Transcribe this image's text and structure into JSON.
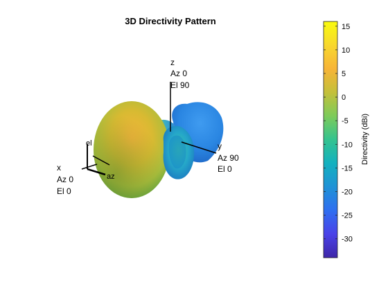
{
  "chart_data": {
    "type": "3d-radiation-pattern",
    "title": "3D Directivity Pattern",
    "colorbar": {
      "label": "Directivity (dBi)",
      "ticks": [
        15,
        10,
        5,
        0,
        -5,
        -10,
        -15,
        -20,
        -25,
        -30
      ],
      "range": [
        -34,
        16
      ],
      "colormap": [
        "#3e26a8",
        "#4a42e8",
        "#2f6ff0",
        "#1f92d6",
        "#13b1bf",
        "#34c38f",
        "#7dcb5a",
        "#c4c03a",
        "#f7b437",
        "#f8d82d",
        "#f9fb0e"
      ]
    },
    "axes": [
      {
        "name": "z",
        "az": "Az 0",
        "el": "El 90"
      },
      {
        "name": "y",
        "az": "Az 90",
        "el": "El 0"
      },
      {
        "name": "x",
        "az": "Az 0",
        "el": "El 0"
      }
    ],
    "triad": {
      "az_label": "az",
      "el_label": "el"
    }
  }
}
